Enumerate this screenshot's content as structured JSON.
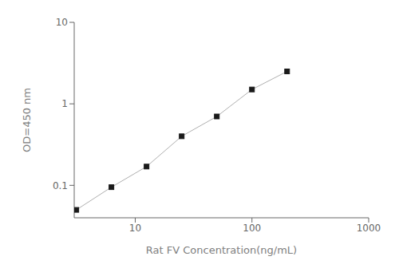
{
  "chart_data": {
    "type": "line",
    "x": [
      3.125,
      6.25,
      12.5,
      25,
      50,
      100,
      200
    ],
    "values": [
      0.05,
      0.095,
      0.17,
      0.4,
      0.7,
      1.5,
      2.5
    ],
    "xlabel": "Rat FV Concentration(ng/mL)",
    "ylabel": "OD=450 nm",
    "xlim": [
      3,
      1000
    ],
    "ylim": [
      0.04,
      10
    ],
    "xticks": [
      10,
      100,
      1000
    ],
    "yticks": [
      0.1,
      1,
      10
    ],
    "log": true,
    "grid": false,
    "color": "#b0b0b0",
    "marker": "square"
  }
}
